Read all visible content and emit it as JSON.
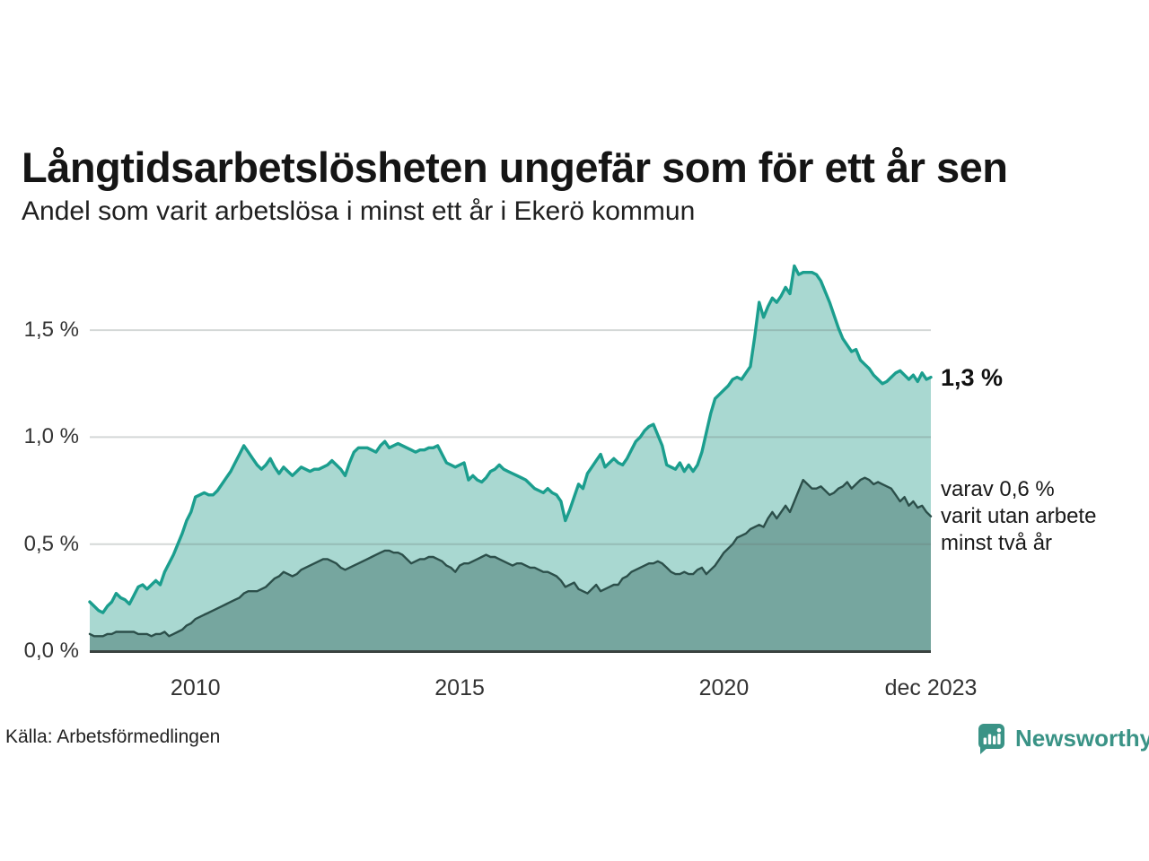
{
  "header": {
    "title": "Långtidsarbetslösheten ungefär som för ett år sen",
    "subtitle": "Andel som varit arbetslösa i minst ett år i Ekerö kommun"
  },
  "annotations": {
    "series1_end_label": "1,3 %",
    "series2_end_lines": [
      "varav 0,6 %",
      "varit utan arbete",
      "minst två år"
    ]
  },
  "footer": {
    "source": "Källa: Arbetsförmedlingen",
    "brand": "Newsworthy"
  },
  "colors": {
    "series1_line": "#1b9e8e",
    "series1_fill": "#a9d8d1",
    "series2_line": "#2c4f4a",
    "series2_fill": "#76a69f",
    "gridline": "#647370",
    "gridline_opacity": 0.28,
    "axis_line": "#3a423f",
    "brand": "#3a9386",
    "text_dark": "#1a1a1a",
    "text_axis": "#333333"
  },
  "chart_data": {
    "type": "area",
    "title": "Långtidsarbetslösheten ungefär som för ett år sen",
    "subtitle": "Andel som varit arbetslösa i minst ett år i Ekerö kommun",
    "unit": "%",
    "x_start": "2008-01",
    "x_end": "2023-12",
    "ylim": [
      0,
      1.85
    ],
    "grid": true,
    "legend_position": "right-annotations",
    "y_ticks": [
      {
        "label": "0,0 %",
        "value": 0.0
      },
      {
        "label": "0,5 %",
        "value": 0.5
      },
      {
        "label": "1,0 %",
        "value": 1.0
      },
      {
        "label": "1,5 %",
        "value": 1.5
      }
    ],
    "x_ticks": [
      {
        "label": "2010",
        "month_index": 24
      },
      {
        "label": "2015",
        "month_index": 84
      },
      {
        "label": "2020",
        "month_index": 144
      },
      {
        "label": "dec 2023",
        "month_index": 191
      }
    ],
    "series": [
      {
        "name": "Arbetslösa minst ett år",
        "end_value": 1.3,
        "values": [
          0.23,
          0.21,
          0.19,
          0.18,
          0.21,
          0.23,
          0.27,
          0.25,
          0.24,
          0.22,
          0.26,
          0.3,
          0.31,
          0.29,
          0.31,
          0.33,
          0.31,
          0.37,
          0.41,
          0.45,
          0.5,
          0.55,
          0.61,
          0.65,
          0.72,
          0.73,
          0.74,
          0.73,
          0.73,
          0.75,
          0.78,
          0.81,
          0.84,
          0.88,
          0.92,
          0.96,
          0.93,
          0.9,
          0.87,
          0.85,
          0.87,
          0.9,
          0.86,
          0.83,
          0.86,
          0.84,
          0.82,
          0.84,
          0.86,
          0.85,
          0.84,
          0.85,
          0.85,
          0.86,
          0.87,
          0.89,
          0.87,
          0.85,
          0.82,
          0.88,
          0.93,
          0.95,
          0.95,
          0.95,
          0.94,
          0.93,
          0.96,
          0.98,
          0.95,
          0.96,
          0.97,
          0.96,
          0.95,
          0.94,
          0.93,
          0.94,
          0.94,
          0.95,
          0.95,
          0.96,
          0.92,
          0.88,
          0.87,
          0.86,
          0.87,
          0.88,
          0.8,
          0.82,
          0.8,
          0.79,
          0.81,
          0.84,
          0.85,
          0.87,
          0.85,
          0.84,
          0.83,
          0.82,
          0.81,
          0.8,
          0.78,
          0.76,
          0.75,
          0.74,
          0.76,
          0.74,
          0.73,
          0.7,
          0.61,
          0.66,
          0.72,
          0.78,
          0.76,
          0.83,
          0.86,
          0.89,
          0.92,
          0.86,
          0.88,
          0.9,
          0.88,
          0.87,
          0.9,
          0.94,
          0.98,
          1.0,
          1.03,
          1.05,
          1.06,
          1.01,
          0.96,
          0.87,
          0.86,
          0.85,
          0.88,
          0.84,
          0.87,
          0.84,
          0.87,
          0.93,
          1.02,
          1.11,
          1.18,
          1.2,
          1.22,
          1.24,
          1.27,
          1.28,
          1.27,
          1.3,
          1.33,
          1.47,
          1.63,
          1.56,
          1.61,
          1.65,
          1.63,
          1.66,
          1.7,
          1.67,
          1.8,
          1.76,
          1.77,
          1.77,
          1.77,
          1.76,
          1.73,
          1.68,
          1.63,
          1.57,
          1.51,
          1.46,
          1.43,
          1.4,
          1.41,
          1.36,
          1.34,
          1.32,
          1.29,
          1.27,
          1.25,
          1.26,
          1.28,
          1.3,
          1.31,
          1.29,
          1.27,
          1.29,
          1.26,
          1.3,
          1.27,
          1.28
        ]
      },
      {
        "name": "Varav utan arbete minst två år",
        "end_value": 0.6,
        "values": [
          0.08,
          0.07,
          0.07,
          0.07,
          0.08,
          0.08,
          0.09,
          0.09,
          0.09,
          0.09,
          0.09,
          0.08,
          0.08,
          0.08,
          0.07,
          0.08,
          0.08,
          0.09,
          0.07,
          0.08,
          0.09,
          0.1,
          0.12,
          0.13,
          0.15,
          0.16,
          0.17,
          0.18,
          0.19,
          0.2,
          0.21,
          0.22,
          0.23,
          0.24,
          0.25,
          0.27,
          0.28,
          0.28,
          0.28,
          0.29,
          0.3,
          0.32,
          0.34,
          0.35,
          0.37,
          0.36,
          0.35,
          0.36,
          0.38,
          0.39,
          0.4,
          0.41,
          0.42,
          0.43,
          0.43,
          0.42,
          0.41,
          0.39,
          0.38,
          0.39,
          0.4,
          0.41,
          0.42,
          0.43,
          0.44,
          0.45,
          0.46,
          0.47,
          0.47,
          0.46,
          0.46,
          0.45,
          0.43,
          0.41,
          0.42,
          0.43,
          0.43,
          0.44,
          0.44,
          0.43,
          0.42,
          0.4,
          0.39,
          0.37,
          0.4,
          0.41,
          0.41,
          0.42,
          0.43,
          0.44,
          0.45,
          0.44,
          0.44,
          0.43,
          0.42,
          0.41,
          0.4,
          0.41,
          0.41,
          0.4,
          0.39,
          0.39,
          0.38,
          0.37,
          0.37,
          0.36,
          0.35,
          0.33,
          0.3,
          0.31,
          0.32,
          0.29,
          0.28,
          0.27,
          0.29,
          0.31,
          0.28,
          0.29,
          0.3,
          0.31,
          0.31,
          0.34,
          0.35,
          0.37,
          0.38,
          0.39,
          0.4,
          0.41,
          0.41,
          0.42,
          0.41,
          0.39,
          0.37,
          0.36,
          0.36,
          0.37,
          0.36,
          0.36,
          0.38,
          0.39,
          0.36,
          0.38,
          0.4,
          0.43,
          0.46,
          0.48,
          0.5,
          0.53,
          0.54,
          0.55,
          0.57,
          0.58,
          0.59,
          0.58,
          0.62,
          0.65,
          0.62,
          0.65,
          0.68,
          0.65,
          0.7,
          0.75,
          0.8,
          0.78,
          0.76,
          0.76,
          0.77,
          0.75,
          0.73,
          0.74,
          0.76,
          0.77,
          0.79,
          0.76,
          0.78,
          0.8,
          0.81,
          0.8,
          0.78,
          0.79,
          0.78,
          0.77,
          0.76,
          0.73,
          0.7,
          0.72,
          0.68,
          0.7,
          0.67,
          0.68,
          0.65,
          0.63
        ]
      }
    ]
  }
}
